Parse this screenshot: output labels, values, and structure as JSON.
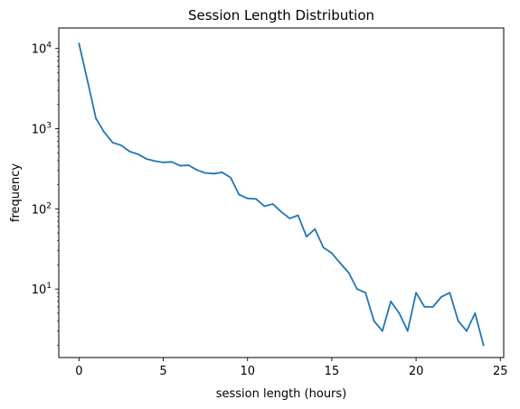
{
  "chart_data": {
    "type": "line",
    "title": "Session Length Distribution",
    "xlabel": "session length (hours)",
    "ylabel": "frequency",
    "xscale": "linear",
    "yscale": "log",
    "xlim": [
      -1.2,
      25.2
    ],
    "ylim": [
      1.4,
      18000
    ],
    "xticks": [
      0,
      5,
      10,
      15,
      20,
      25
    ],
    "xtick_labels": [
      "0",
      "5",
      "10",
      "15",
      "20",
      "25"
    ],
    "yticks": [
      10,
      100,
      1000,
      10000
    ],
    "ytick_labels": [
      {
        "base": "10",
        "exp": "1"
      },
      {
        "base": "10",
        "exp": "2"
      },
      {
        "base": "10",
        "exp": "3"
      },
      {
        "base": "10",
        "exp": "4"
      }
    ],
    "grid": false,
    "legend": "none",
    "line_color": "#1f77b4",
    "series": [
      {
        "x": [
          0,
          0.5,
          1,
          1.5,
          2,
          2.5,
          3,
          3.5,
          4,
          4.5,
          5,
          5.5,
          6,
          6.5,
          7,
          7.5,
          8,
          8.5,
          9,
          9.5,
          10,
          10.5,
          11,
          11.5,
          12,
          12.5,
          13,
          13.5,
          14,
          14.5,
          15,
          15.5,
          16,
          16.5,
          17,
          17.5,
          18,
          18.5,
          19,
          19.5,
          20,
          20.5,
          21,
          21.5,
          22,
          22.5,
          23,
          23.5,
          24
        ],
        "values": [
          11500,
          4000,
          1350,
          900,
          670,
          620,
          520,
          480,
          420,
          395,
          380,
          385,
          345,
          350,
          305,
          280,
          275,
          285,
          245,
          150,
          135,
          133,
          108,
          115,
          92,
          76,
          83,
          45,
          56,
          33,
          28,
          21,
          16,
          10,
          9,
          4,
          3,
          7,
          5,
          3,
          9,
          6,
          6,
          8,
          9,
          4,
          3,
          5,
          2
        ]
      }
    ]
  }
}
